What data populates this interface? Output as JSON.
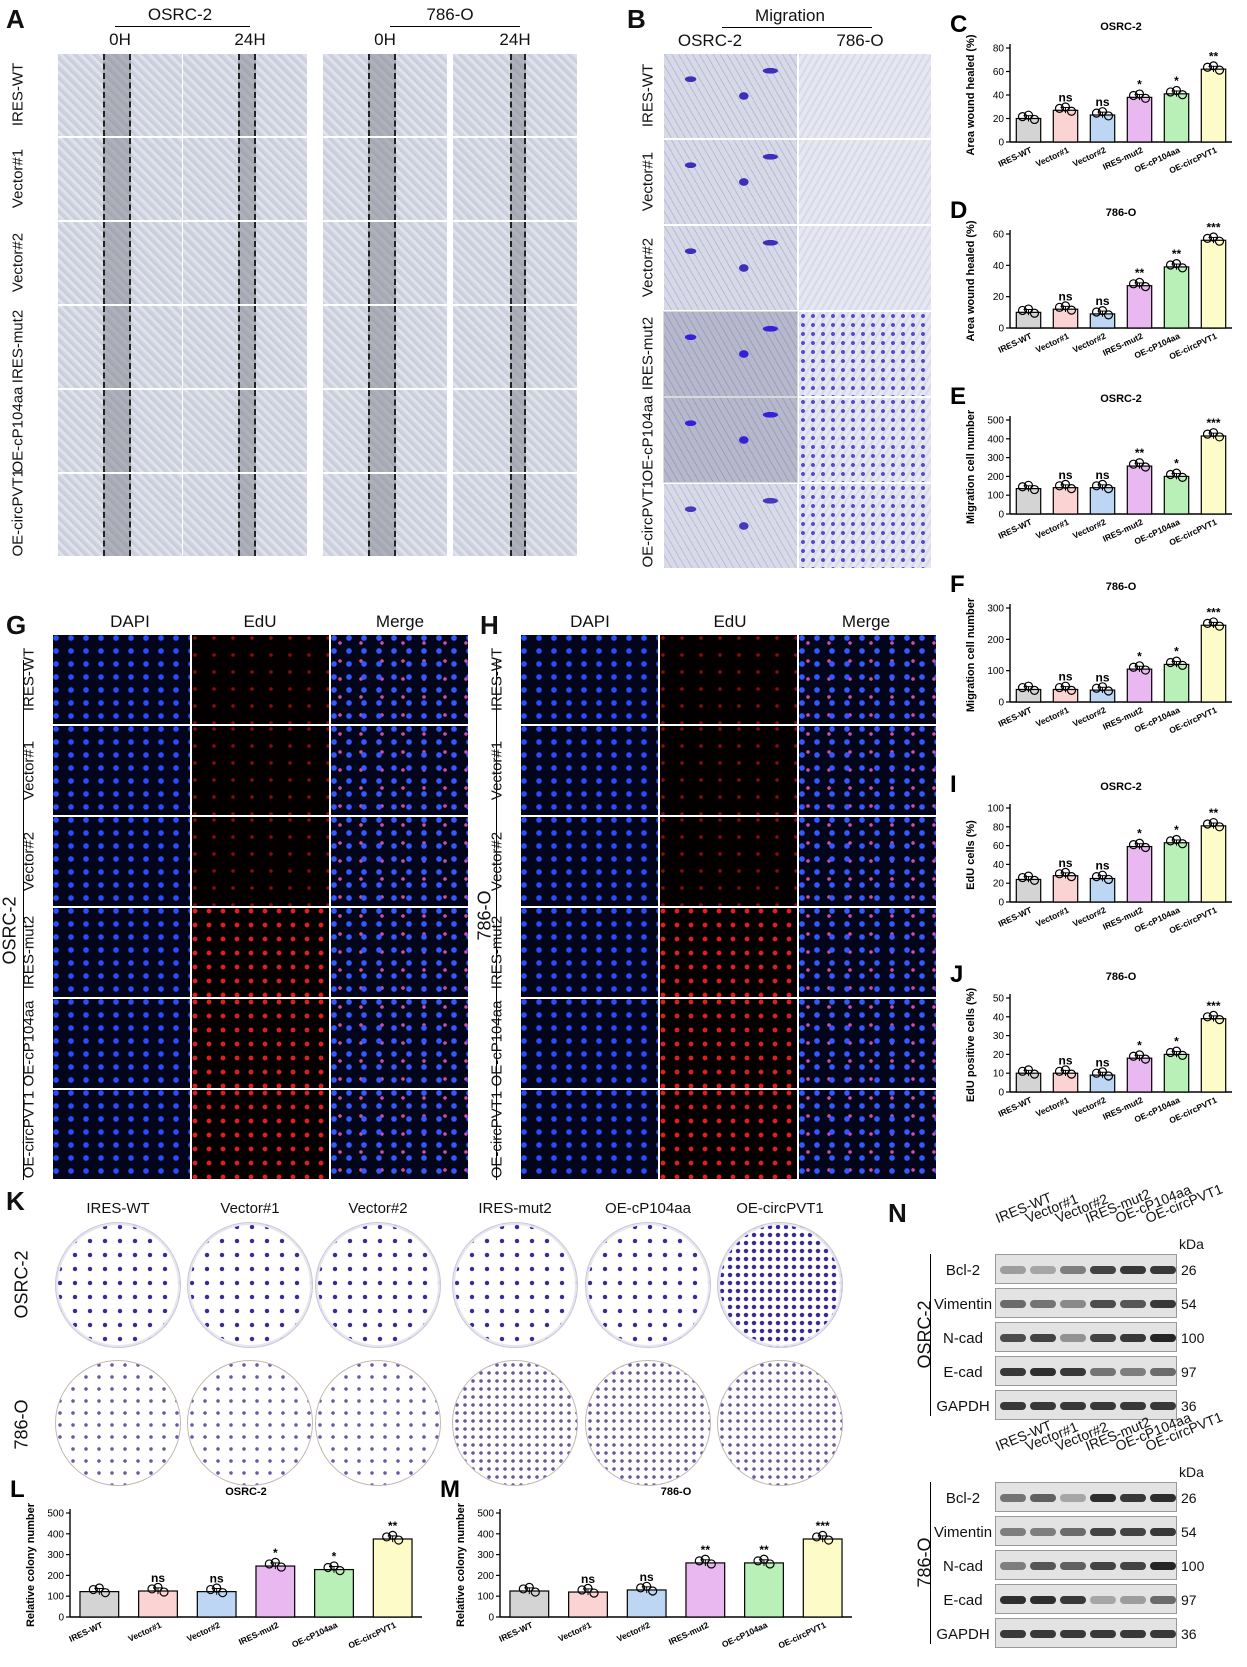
{
  "panels": {
    "A": {
      "label": "A",
      "cell_lines": [
        "OSRC-2",
        "786-O"
      ],
      "timepoints": [
        "0H",
        "24H"
      ],
      "rows": [
        "IRES-WT",
        "Vector#1",
        "Vector#2",
        "IRES-mut2",
        "OE-cP104aa",
        "OE-circPVT1"
      ]
    },
    "B": {
      "label": "B",
      "title": "Migration",
      "cell_lines": [
        "OSRC-2",
        "786-O"
      ],
      "rows": [
        "IRES-WT",
        "Vector#1",
        "Vector#2",
        "IRES-mut2",
        "OE-cP104aa",
        "OE-circPVT1"
      ]
    },
    "G": {
      "label": "G",
      "cell_line": "OSRC-2",
      "channels": [
        "DAPI",
        "EdU",
        "Merge"
      ],
      "rows": [
        "IRES-WT",
        "Vector#1",
        "Vector#2",
        "IRES-mut2",
        "OE-cP104aa",
        "OE-circPVT1"
      ]
    },
    "H": {
      "label": "H",
      "cell_line": "786-O",
      "channels": [
        "DAPI",
        "EdU",
        "Merge"
      ],
      "rows": [
        "IRES-WT",
        "Vector#1",
        "Vector#2",
        "IRES-mut2",
        "OE-cP104aa",
        "OE-circPVT1"
      ]
    },
    "K": {
      "label": "K",
      "columns": [
        "IRES-WT",
        "Vector#1",
        "Vector#2",
        "IRES-mut2",
        "OE-cP104aa",
        "OE-circPVT1"
      ],
      "rows": [
        "OSRC-2",
        "786-O"
      ]
    },
    "N": {
      "label": "N",
      "lanes": [
        "IRES-WT",
        "Vector#1",
        "Vector#2",
        "IRES-mut2",
        "OE-cP104aa",
        "OE-circPVT1"
      ],
      "unit": "kDa",
      "blots": [
        {
          "cell_line": "OSRC-2",
          "proteins": [
            {
              "name": "Bcl-2",
              "kda": "26",
              "intensity": [
                0.35,
                0.3,
                0.5,
                0.8,
                0.85,
                0.85
              ]
            },
            {
              "name": "Vimentin",
              "kda": "54",
              "intensity": [
                0.6,
                0.55,
                0.45,
                0.75,
                0.7,
                0.85
              ]
            },
            {
              "name": "N-cad",
              "kda": "100",
              "intensity": [
                0.75,
                0.8,
                0.4,
                0.8,
                0.85,
                0.95
              ]
            },
            {
              "name": "E-cad",
              "kda": "97",
              "intensity": [
                0.85,
                0.9,
                0.85,
                0.55,
                0.5,
                0.6
              ]
            },
            {
              "name": "GAPDH",
              "kda": "36",
              "intensity": [
                0.85,
                0.85,
                0.85,
                0.85,
                0.85,
                0.85
              ]
            }
          ]
        },
        {
          "cell_line": "786-O",
          "proteins": [
            {
              "name": "Bcl-2",
              "kda": "26",
              "intensity": [
                0.55,
                0.65,
                0.3,
                0.9,
                0.85,
                0.9
              ]
            },
            {
              "name": "Vimentin",
              "kda": "54",
              "intensity": [
                0.5,
                0.5,
                0.6,
                0.8,
                0.8,
                0.85
              ]
            },
            {
              "name": "N-cad",
              "kda": "100",
              "intensity": [
                0.5,
                0.7,
                0.65,
                0.8,
                0.8,
                0.95
              ]
            },
            {
              "name": "E-cad",
              "kda": "97",
              "intensity": [
                0.9,
                0.9,
                0.85,
                0.3,
                0.35,
                0.6
              ]
            },
            {
              "name": "GAPDH",
              "kda": "36",
              "intensity": [
                0.85,
                0.85,
                0.85,
                0.85,
                0.85,
                0.85
              ]
            }
          ]
        }
      ]
    }
  },
  "colors": {
    "bars": [
      "#d4d4d4",
      "#fbd3d3",
      "#bcd6f3",
      "#e9b8f0",
      "#b8f0b8",
      "#fdfbc8"
    ]
  },
  "chart_data": [
    {
      "panel": "C",
      "type": "bar",
      "title": "OSRC-2",
      "ylabel": "Area wound healed (%)",
      "categories": [
        "IRES-WT",
        "Vector#1",
        "Vector#2",
        "IRES-mut2",
        "OE-cP104aa",
        "OE-circPVT1"
      ],
      "values": [
        20,
        27,
        23,
        38,
        41,
        62
      ],
      "significance": [
        "",
        "ns",
        "ns",
        "*",
        "*",
        "**"
      ],
      "ylim": [
        0,
        80
      ],
      "yticks": [
        0,
        20,
        40,
        60,
        80
      ]
    },
    {
      "panel": "D",
      "type": "bar",
      "title": "786-O",
      "ylabel": "Area wound healed (%)",
      "categories": [
        "IRES-WT",
        "Vector#1",
        "Vector#2",
        "IRES-mut2",
        "OE-cP104aa",
        "OE-circPVT1"
      ],
      "values": [
        10,
        12,
        9,
        27,
        39,
        56
      ],
      "significance": [
        "",
        "ns",
        "ns",
        "**",
        "**",
        "***"
      ],
      "ylim": [
        0,
        60
      ],
      "yticks": [
        0,
        20,
        40,
        60
      ]
    },
    {
      "panel": "E",
      "type": "bar",
      "title": "OSRC-2",
      "ylabel": "Migration cell number",
      "categories": [
        "IRES-WT",
        "Vector#1",
        "Vector#2",
        "IRES-mut2",
        "OE-cP104aa",
        "OE-circPVT1"
      ],
      "values": [
        135,
        140,
        140,
        255,
        200,
        415
      ],
      "significance": [
        "",
        "ns",
        "ns",
        "**",
        "*",
        "***"
      ],
      "ylim": [
        0,
        500
      ],
      "yticks": [
        0,
        100,
        200,
        300,
        400,
        500
      ]
    },
    {
      "panel": "F",
      "type": "bar",
      "title": "786-O",
      "ylabel": "Migration cell number",
      "categories": [
        "IRES-WT",
        "Vector#1",
        "Vector#2",
        "IRES-mut2",
        "OE-cP104aa",
        "OE-circPVT1"
      ],
      "values": [
        40,
        40,
        38,
        105,
        120,
        245
      ],
      "significance": [
        "",
        "ns",
        "ns",
        "*",
        "*",
        "***"
      ],
      "ylim": [
        0,
        300
      ],
      "yticks": [
        0,
        100,
        200,
        300
      ]
    },
    {
      "panel": "I",
      "type": "bar",
      "title": "OSRC-2",
      "ylabel": "EdU cells (%)",
      "categories": [
        "IRES-WT",
        "Vector#1",
        "Vector#2",
        "IRES-mut2",
        "OE-cP104aa",
        "OE-circPVT1"
      ],
      "values": [
        24,
        28,
        25,
        59,
        63,
        81
      ],
      "significance": [
        "",
        "ns",
        "ns",
        "*",
        "*",
        "**"
      ],
      "ylim": [
        0,
        100
      ],
      "yticks": [
        0,
        20,
        40,
        60,
        80,
        100
      ]
    },
    {
      "panel": "J",
      "type": "bar",
      "title": "786-O",
      "ylabel": "EdU positive cells (%)",
      "categories": [
        "IRES-WT",
        "Vector#1",
        "Vector#2",
        "IRES-mut2",
        "OE-cP104aa",
        "OE-circPVT1"
      ],
      "values": [
        10,
        10,
        9,
        18,
        20,
        39
      ],
      "significance": [
        "",
        "ns",
        "ns",
        "*",
        "*",
        "***"
      ],
      "ylim": [
        0,
        50
      ],
      "yticks": [
        0,
        10,
        20,
        30,
        40,
        50
      ]
    },
    {
      "panel": "L",
      "type": "bar",
      "title": "OSRC-2",
      "ylabel": "Relative colony number",
      "categories": [
        "IRES-WT",
        "Vector#1",
        "Vector#2",
        "IRES-mut2",
        "OE-cP104aa",
        "OE-circPVT1"
      ],
      "values": [
        122,
        125,
        122,
        245,
        228,
        375
      ],
      "significance": [
        "",
        "ns",
        "ns",
        "*",
        "*",
        "**"
      ],
      "ylim": [
        0,
        500
      ],
      "yticks": [
        0,
        100,
        200,
        300,
        400,
        500
      ]
    },
    {
      "panel": "M",
      "type": "bar",
      "title": "786-O",
      "ylabel": "Relative colony number",
      "categories": [
        "IRES-WT",
        "Vector#1",
        "Vector#2",
        "IRES-mut2",
        "OE-cP104aa",
        "OE-circPVT1"
      ],
      "values": [
        125,
        120,
        130,
        260,
        260,
        375
      ],
      "significance": [
        "",
        "ns",
        "ns",
        "**",
        "**",
        "***"
      ],
      "ylim": [
        0,
        500
      ],
      "yticks": [
        0,
        100,
        200,
        300,
        400,
        500
      ]
    }
  ]
}
